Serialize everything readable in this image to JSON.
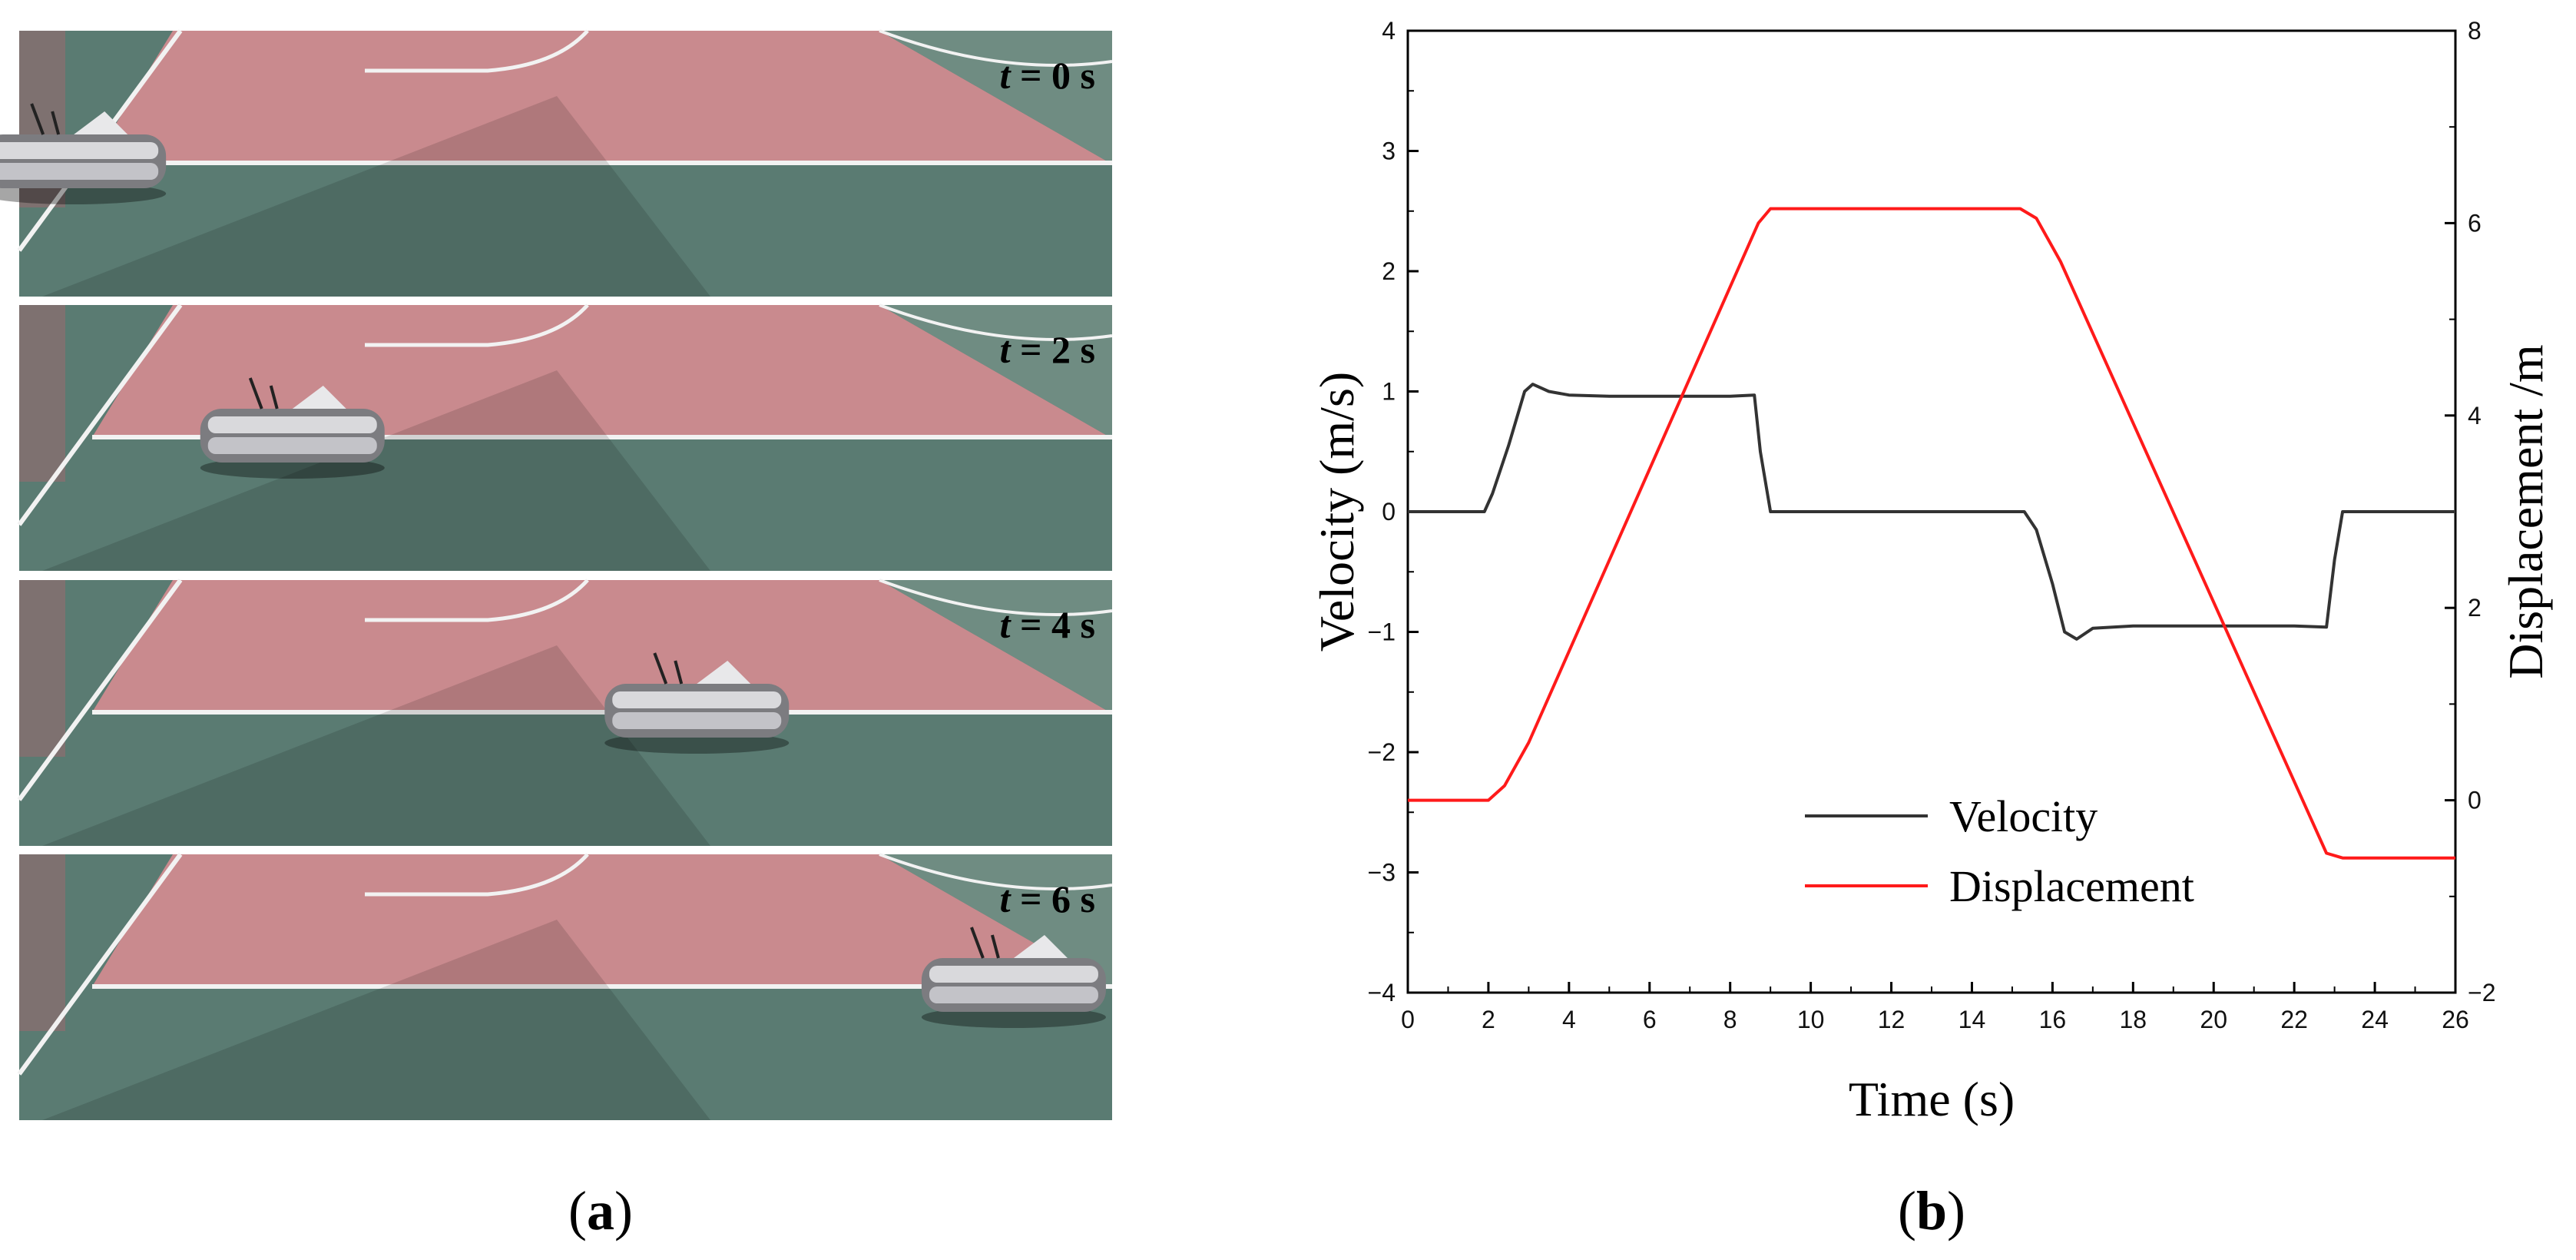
{
  "panels": {
    "a": {
      "label_open": "(",
      "label_letter": "a",
      "label_close": ")",
      "frames": [
        {
          "italic": "t",
          "rest": " = 0 s",
          "time_s": 0,
          "robot_pos": 0.05
        },
        {
          "italic": "t",
          "rest": " = 2 s",
          "time_s": 2,
          "robot_pos": 0.25
        },
        {
          "italic": "t",
          "rest": " = 4 s",
          "time_s": 4,
          "robot_pos": 0.62
        },
        {
          "italic": "t",
          "rest": " = 6 s",
          "time_s": 6,
          "robot_pos": 0.91
        }
      ]
    },
    "b": {
      "label_open": "(",
      "label_letter": "b",
      "label_close": ")"
    }
  },
  "colors": {
    "velocity": "#333333",
    "displacement": "#ff1a1a",
    "court_red": "#c98a8e",
    "court_green": "#5a7b72",
    "line_white": "#f2f2f2"
  },
  "chart_data": {
    "type": "line",
    "xlabel": "Time (s)",
    "ylabel_left": "Velocity (m/s)",
    "ylabel_right": "Displacement /m",
    "xlim": [
      0,
      26
    ],
    "ylim_left": [
      -4,
      4
    ],
    "ylim_right": [
      -2,
      8
    ],
    "xticks": [
      0,
      2,
      4,
      6,
      8,
      10,
      12,
      14,
      16,
      18,
      20,
      22,
      24,
      26
    ],
    "yticks_left": [
      -4,
      -3,
      -2,
      -1,
      0,
      1,
      2,
      3,
      4
    ],
    "yticks_right": [
      -2,
      0,
      2,
      4,
      6,
      8
    ],
    "ytick_labels_left": [
      "−4",
      "−3",
      "−2",
      "−1",
      "0",
      "1",
      "2",
      "3",
      "4"
    ],
    "ytick_labels_right": [
      "−2",
      "0",
      "2",
      "4",
      "6",
      "8"
    ],
    "grid": false,
    "legend": {
      "position": "lower-center",
      "entries": [
        "Velocity",
        "Displacement"
      ]
    },
    "series": [
      {
        "name": "Velocity",
        "axis": "left",
        "x": [
          0,
          1.9,
          2.1,
          2.5,
          2.9,
          3.1,
          3.5,
          4.0,
          5.0,
          6.0,
          7.0,
          8.0,
          8.6,
          8.75,
          9.0,
          12.0,
          15.3,
          15.6,
          16.0,
          16.3,
          16.6,
          17.0,
          18.0,
          19.0,
          20.0,
          21.0,
          22.0,
          22.8,
          23.0,
          23.2,
          26
        ],
        "y": [
          0,
          0,
          0.15,
          0.55,
          1.0,
          1.06,
          1.0,
          0.97,
          0.96,
          0.96,
          0.96,
          0.96,
          0.97,
          0.5,
          0,
          0,
          0,
          -0.15,
          -0.6,
          -1.0,
          -1.06,
          -0.97,
          -0.95,
          -0.95,
          -0.95,
          -0.95,
          -0.95,
          -0.96,
          -0.4,
          0,
          0
        ]
      },
      {
        "name": "Displacement",
        "axis": "right",
        "x": [
          0,
          2.0,
          2.4,
          3.0,
          8.7,
          9.0,
          15.2,
          15.6,
          16.2,
          22.8,
          23.2,
          26
        ],
        "y": [
          0,
          0,
          0.15,
          0.6,
          6.0,
          6.15,
          6.15,
          6.05,
          5.6,
          -0.55,
          -0.6,
          -0.6
        ]
      }
    ]
  }
}
